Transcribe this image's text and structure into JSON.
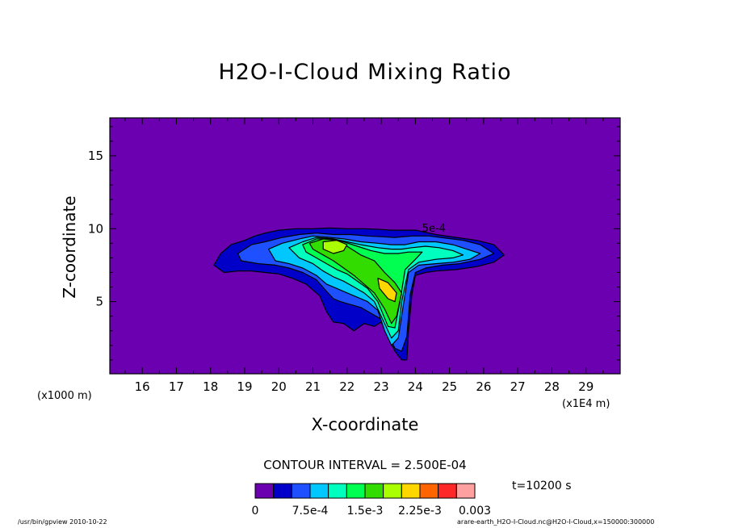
{
  "chart_data": {
    "type": "contour",
    "title": "H2O-I-Cloud Mixing Ratio",
    "xlabel": "X-coordinate",
    "ylabel": "Z-coordinate",
    "x_unit_left": "(x1000 m)",
    "x_unit_right": "(x1E4 m)",
    "xlim": [
      15.05,
      30.0
    ],
    "ylim": [
      0.05,
      17.6
    ],
    "x_ticks": [
      16,
      17,
      18,
      19,
      20,
      21,
      22,
      23,
      24,
      25,
      26,
      27,
      28,
      29
    ],
    "y_ticks": [
      5,
      10,
      15
    ],
    "background_color": "#6a00b0",
    "contour_interval": "CONTOUR INTERVAL = 2.500E-04",
    "time": "t=10200 s",
    "contour_label": "5e-4",
    "levels": [
      {
        "x": [
          18.1,
          18.3,
          18.6,
          19.0,
          19.3,
          19.6,
          20.0,
          20.5,
          21.0,
          21.5,
          22.0,
          22.5,
          23.0,
          23.3,
          23.5,
          24.0,
          24.6,
          25.2,
          25.8,
          26.3,
          26.6,
          26.3,
          25.8,
          25.2,
          24.6,
          24.3,
          24.0,
          23.9,
          23.8,
          23.75,
          23.6,
          23.4,
          23.2,
          23.0,
          22.8,
          22.5,
          22.2,
          21.9,
          21.6,
          21.4,
          21.2,
          20.8,
          20.4,
          20.0,
          19.6,
          19.2,
          18.8,
          18.4,
          18.1
        ],
        "y": [
          7.5,
          8.3,
          8.9,
          9.2,
          9.5,
          9.7,
          9.9,
          10.0,
          10.0,
          10.05,
          10.0,
          10.0,
          9.95,
          9.9,
          9.9,
          9.9,
          9.6,
          9.4,
          9.2,
          8.9,
          8.2,
          7.7,
          7.4,
          7.2,
          7.1,
          7.0,
          6.8,
          5.5,
          3.0,
          1.0,
          1.0,
          1.6,
          2.6,
          3.6,
          3.3,
          3.5,
          3.0,
          3.5,
          3.6,
          4.3,
          5.4,
          6.2,
          6.6,
          6.9,
          7.0,
          7.1,
          7.1,
          7.0,
          7.5
        ]
      },
      {
        "x": [
          18.8,
          19.2,
          19.6,
          20.1,
          20.6,
          21.1,
          21.6,
          22.1,
          22.6,
          23.0,
          23.4,
          23.9,
          24.4,
          24.9,
          25.4,
          25.9,
          26.3,
          25.9,
          25.3,
          24.8,
          24.3,
          24.0,
          23.85,
          23.75,
          23.6,
          23.4,
          23.2,
          23.0,
          22.7,
          22.4,
          22.1,
          21.8,
          21.6,
          21.4,
          21.1,
          20.7,
          20.3,
          19.9,
          19.4,
          18.9,
          18.8
        ],
        "y": [
          8.3,
          8.9,
          9.1,
          9.4,
          9.6,
          9.7,
          9.6,
          9.6,
          9.5,
          9.45,
          9.4,
          9.5,
          9.5,
          9.35,
          9.2,
          8.9,
          8.3,
          7.9,
          7.6,
          7.5,
          7.3,
          7.0,
          5.5,
          2.6,
          1.6,
          1.8,
          2.8,
          3.8,
          4.2,
          4.6,
          4.8,
          5.0,
          5.2,
          5.7,
          6.5,
          7.0,
          7.3,
          7.5,
          7.6,
          7.8,
          8.3
        ]
      },
      {
        "x": [
          19.7,
          20.1,
          20.6,
          21.0,
          21.5,
          21.9,
          22.4,
          22.9,
          23.3,
          23.7,
          24.1,
          24.6,
          25.1,
          25.5,
          25.9,
          25.6,
          25.1,
          24.6,
          24.1,
          23.8,
          23.65,
          23.5,
          23.3,
          23.1,
          22.9,
          22.6,
          22.3,
          22.0,
          21.7,
          21.4,
          21.1,
          20.7,
          20.3,
          19.9,
          19.7
        ],
        "y": [
          8.6,
          9.0,
          9.3,
          9.5,
          9.4,
          9.3,
          9.1,
          9.0,
          8.9,
          8.9,
          9.1,
          9.1,
          8.9,
          8.6,
          8.3,
          7.9,
          7.7,
          7.6,
          7.5,
          7.0,
          4.8,
          2.5,
          2.0,
          3.0,
          4.4,
          5.0,
          5.3,
          5.6,
          5.9,
          6.2,
          6.8,
          7.3,
          7.6,
          7.8,
          8.6
        ]
      },
      {
        "x": [
          20.3,
          20.7,
          21.1,
          21.6,
          22.0,
          22.4,
          22.9,
          23.3,
          23.6,
          23.9,
          24.3,
          24.7,
          25.1,
          25.4,
          25.1,
          24.6,
          24.1,
          23.8,
          23.6,
          23.5,
          23.3,
          23.1,
          22.8,
          22.5,
          22.2,
          21.9,
          21.6,
          21.3,
          21.0,
          20.6,
          20.3
        ],
        "y": [
          8.7,
          9.1,
          9.4,
          9.3,
          9.1,
          8.9,
          8.7,
          8.6,
          8.6,
          8.7,
          8.8,
          8.7,
          8.5,
          8.2,
          8.0,
          7.9,
          7.7,
          7.2,
          5.0,
          3.0,
          2.5,
          3.5,
          5.0,
          5.6,
          6.0,
          6.4,
          6.7,
          7.1,
          7.6,
          8.0,
          8.7
        ]
      },
      {
        "x": [
          20.7,
          21.1,
          21.5,
          21.9,
          22.3,
          22.7,
          23.1,
          23.5,
          23.8,
          24.2,
          24.0,
          23.7,
          23.55,
          23.4,
          23.2,
          22.9,
          22.6,
          22.3,
          22.0,
          21.7,
          21.4,
          21.1,
          20.8,
          20.7
        ],
        "y": [
          8.9,
          9.3,
          9.3,
          9.1,
          8.8,
          8.5,
          8.3,
          8.3,
          8.4,
          8.4,
          7.9,
          7.2,
          5.0,
          3.2,
          3.3,
          5.0,
          5.9,
          6.4,
          6.9,
          7.2,
          7.6,
          8.0,
          8.4,
          8.9
        ]
      },
      {
        "x": [
          20.9,
          21.3,
          21.7,
          22.0,
          22.4,
          22.8,
          23.1,
          23.4,
          23.6,
          23.45,
          23.3,
          23.1,
          22.8,
          22.5,
          22.2,
          21.9,
          21.6,
          21.3,
          21.0,
          20.9
        ],
        "y": [
          9.0,
          9.3,
          9.2,
          8.8,
          8.2,
          7.8,
          7.0,
          6.3,
          5.6,
          4.0,
          3.5,
          4.5,
          5.6,
          6.2,
          6.8,
          7.3,
          7.8,
          8.2,
          8.6,
          9.0
        ]
      },
      {
        "x": [
          21.3,
          21.7,
          22.0,
          21.9,
          21.6,
          21.3,
          21.3
        ],
        "y": [
          9.1,
          9.2,
          8.9,
          8.5,
          8.3,
          8.6,
          9.1
        ]
      },
      {
        "x": [
          22.9,
          23.2,
          23.45,
          23.4,
          23.2,
          22.95,
          22.9
        ],
        "y": [
          6.6,
          6.3,
          5.6,
          5.0,
          5.2,
          5.9,
          6.6
        ]
      }
    ],
    "colorbar": {
      "colors": [
        "#6a00b0",
        "#0000c8",
        "#1e50ff",
        "#00c8ff",
        "#00ffbe",
        "#00ff50",
        "#32dc00",
        "#aaff00",
        "#ffd700",
        "#ff6400",
        "#ff2828",
        "#ffa0a0"
      ],
      "tick_labels": [
        "0",
        "7.5e-4",
        "1.5e-3",
        "2.25e-3",
        "0.003"
      ],
      "tick_values": [
        0,
        0.00075,
        0.0015,
        0.00225,
        0.003
      ],
      "range": [
        0,
        0.003
      ]
    }
  },
  "footer_left": "/usr/bin/gpview   2010-10-22",
  "footer_right": "arare-earth_H2O-I-Cloud.nc@H2O-I-Cloud,x=150000:300000"
}
